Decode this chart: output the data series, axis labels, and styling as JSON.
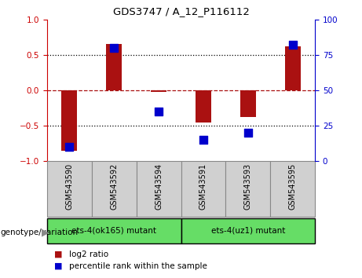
{
  "title": "GDS3747 / A_12_P116112",
  "samples": [
    "GSM543590",
    "GSM543592",
    "GSM543594",
    "GSM543591",
    "GSM543593",
    "GSM543595"
  ],
  "log2_ratios": [
    -0.85,
    0.65,
    -0.02,
    -0.45,
    -0.38,
    0.62
  ],
  "percentile_ranks": [
    10,
    80,
    35,
    15,
    20,
    82
  ],
  "bar_color": "#aa1111",
  "dot_color": "#0000cc",
  "ylim_left": [
    -1,
    1
  ],
  "ylim_right": [
    0,
    100
  ],
  "yticks_left": [
    -1,
    -0.5,
    0,
    0.5,
    1
  ],
  "yticks_right": [
    0,
    25,
    50,
    75,
    100
  ],
  "dotted_hlines": [
    0.5,
    -0.5
  ],
  "groups": [
    {
      "label": "ets-4(ok165) mutant",
      "indices": [
        0,
        1,
        2
      ],
      "color": "#66dd66"
    },
    {
      "label": "ets-4(uz1) mutant",
      "indices": [
        3,
        4,
        5
      ],
      "color": "#66dd66"
    }
  ],
  "genotype_label": "genotype/variation",
  "legend_items": [
    {
      "label": "log2 ratio",
      "color": "#aa1111"
    },
    {
      "label": "percentile rank within the sample",
      "color": "#0000cc"
    }
  ],
  "left_axis_color": "#cc0000",
  "right_axis_color": "#0000cc",
  "background_color": "#ffffff",
  "bar_width": 0.35,
  "dot_size": 45,
  "sample_box_color": "#d0d0d0",
  "sample_box_edge": "#888888"
}
